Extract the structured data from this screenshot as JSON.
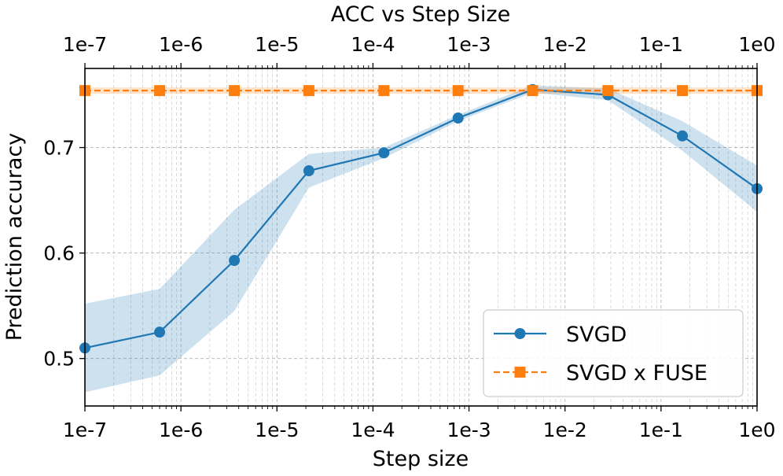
{
  "chart_data": {
    "type": "line",
    "title": "ACC vs Step Size",
    "xlabel": "Step size",
    "ylabel": "Prediction accuracy",
    "xscale": "log",
    "xlim": [
      1e-07,
      1
    ],
    "ylim": [
      0.455,
      0.775
    ],
    "x_tick_values": [
      1e-07,
      1e-06,
      1e-05,
      0.0001,
      0.001,
      0.01,
      0.1,
      1
    ],
    "x_tick_labels": [
      "1e-7",
      "1e-6",
      "1e-5",
      "1e-4",
      "1e-3",
      "1e-2",
      "1e-1",
      "1e0"
    ],
    "y_tick_values": [
      0.5,
      0.6,
      0.7
    ],
    "y_tick_labels": [
      "0.5",
      "0.6",
      "0.7"
    ],
    "grid": true,
    "legend_position": "lower-right",
    "x": [
      1e-07,
      6e-07,
      3.6e-06,
      2.15e-05,
      0.00013,
      0.00077,
      0.0046,
      0.028,
      0.167,
      1
    ],
    "series": [
      {
        "name": "SVGD",
        "color": "#1f77b4",
        "marker": "circle",
        "linestyle": "solid",
        "values": [
          0.51,
          0.525,
          0.593,
          0.678,
          0.695,
          0.728,
          0.755,
          0.75,
          0.711,
          0.661
        ],
        "band_lower": [
          0.468,
          0.484,
          0.545,
          0.662,
          0.69,
          0.725,
          0.752,
          0.745,
          0.697,
          0.639
        ],
        "band_upper": [
          0.552,
          0.566,
          0.641,
          0.694,
          0.7,
          0.731,
          0.759,
          0.756,
          0.725,
          0.683
        ]
      },
      {
        "name": "SVGD x FUSE",
        "color": "#ff7f0e",
        "marker": "square",
        "linestyle": "dashed",
        "values": [
          0.754,
          0.754,
          0.754,
          0.754,
          0.754,
          0.754,
          0.754,
          0.754,
          0.754,
          0.754
        ],
        "band_lower": [
          0.751,
          0.751,
          0.751,
          0.751,
          0.751,
          0.751,
          0.751,
          0.751,
          0.751,
          0.751
        ],
        "band_upper": [
          0.757,
          0.757,
          0.757,
          0.757,
          0.757,
          0.757,
          0.757,
          0.757,
          0.757,
          0.757
        ]
      }
    ]
  }
}
